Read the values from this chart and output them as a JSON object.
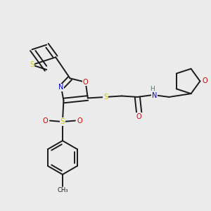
{
  "bg_color": "#ebebeb",
  "bond_color": "#1a1a1a",
  "bond_width": 1.4,
  "dbo": 0.013,
  "atom_colors": {
    "S": "#cccc00",
    "N": "#0000cc",
    "O": "#cc0000",
    "NH": "#3a8080",
    "C": "#1a1a1a"
  },
  "fs": 7.0,
  "fig_w": 3.0,
  "fig_h": 3.0,
  "dpi": 100
}
